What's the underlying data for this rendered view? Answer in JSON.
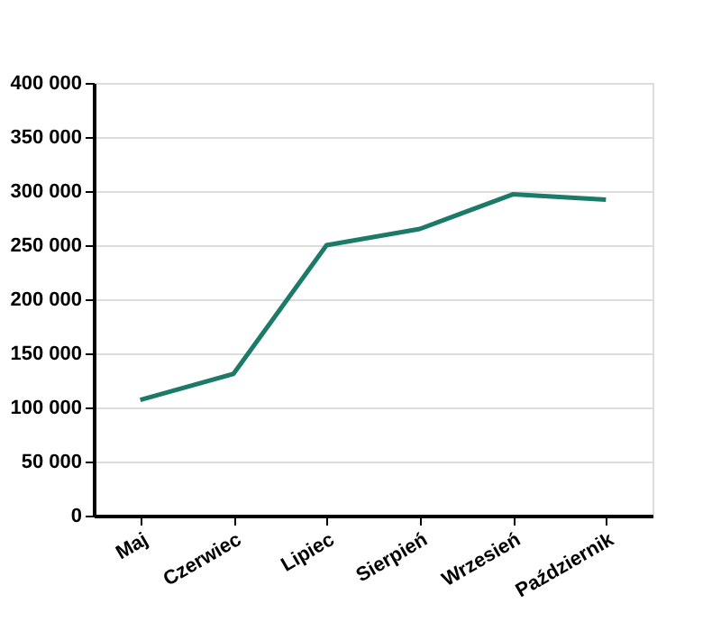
{
  "chart_data": {
    "type": "line",
    "categories": [
      "Maj",
      "Czerwiec",
      "Lipiec",
      "Sierpień",
      "Wrzesień",
      "Październik"
    ],
    "series": [
      {
        "color": "#1b7a68",
        "values": [
          107000,
          131000,
          250000,
          265000,
          297000,
          292000
        ]
      }
    ],
    "ylim": [
      0,
      400000
    ],
    "yticks": [
      {
        "value": 0,
        "label": "0"
      },
      {
        "value": 50000,
        "label": "50 000"
      },
      {
        "value": 100000,
        "label": "100 000"
      },
      {
        "value": 150000,
        "label": "150 000"
      },
      {
        "value": 200000,
        "label": "200 000"
      },
      {
        "value": 250000,
        "label": "250 000"
      },
      {
        "value": 300000,
        "label": "300 000"
      },
      {
        "value": 350000,
        "label": "350 000"
      },
      {
        "value": 400000,
        "label": "400 000"
      }
    ],
    "grid": "y",
    "marker": "none",
    "line_style": "solid",
    "legend": false
  }
}
